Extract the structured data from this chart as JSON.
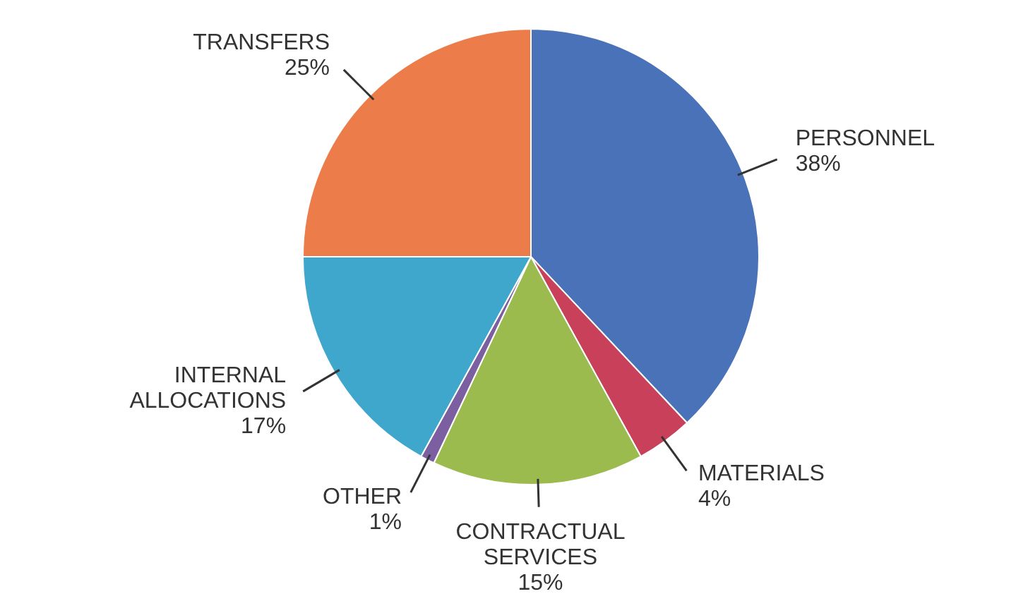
{
  "chart_data": {
    "type": "pie",
    "categories": [
      "PERSONNEL",
      "MATERIALS",
      "CONTRACTUAL SERVICES",
      "OTHER",
      "INTERNAL ALLOCATIONS",
      "TRANSFERS"
    ],
    "values": [
      38,
      4,
      15,
      1,
      17,
      25
    ],
    "colors": [
      "#4a72b8",
      "#c8405a",
      "#9cbb4e",
      "#7b5fa0",
      "#3fa6cc",
      "#ec7d4a"
    ],
    "value_labels": [
      "38%",
      "4%",
      "15%",
      "1%",
      "17%",
      "25%"
    ],
    "legend": false
  }
}
